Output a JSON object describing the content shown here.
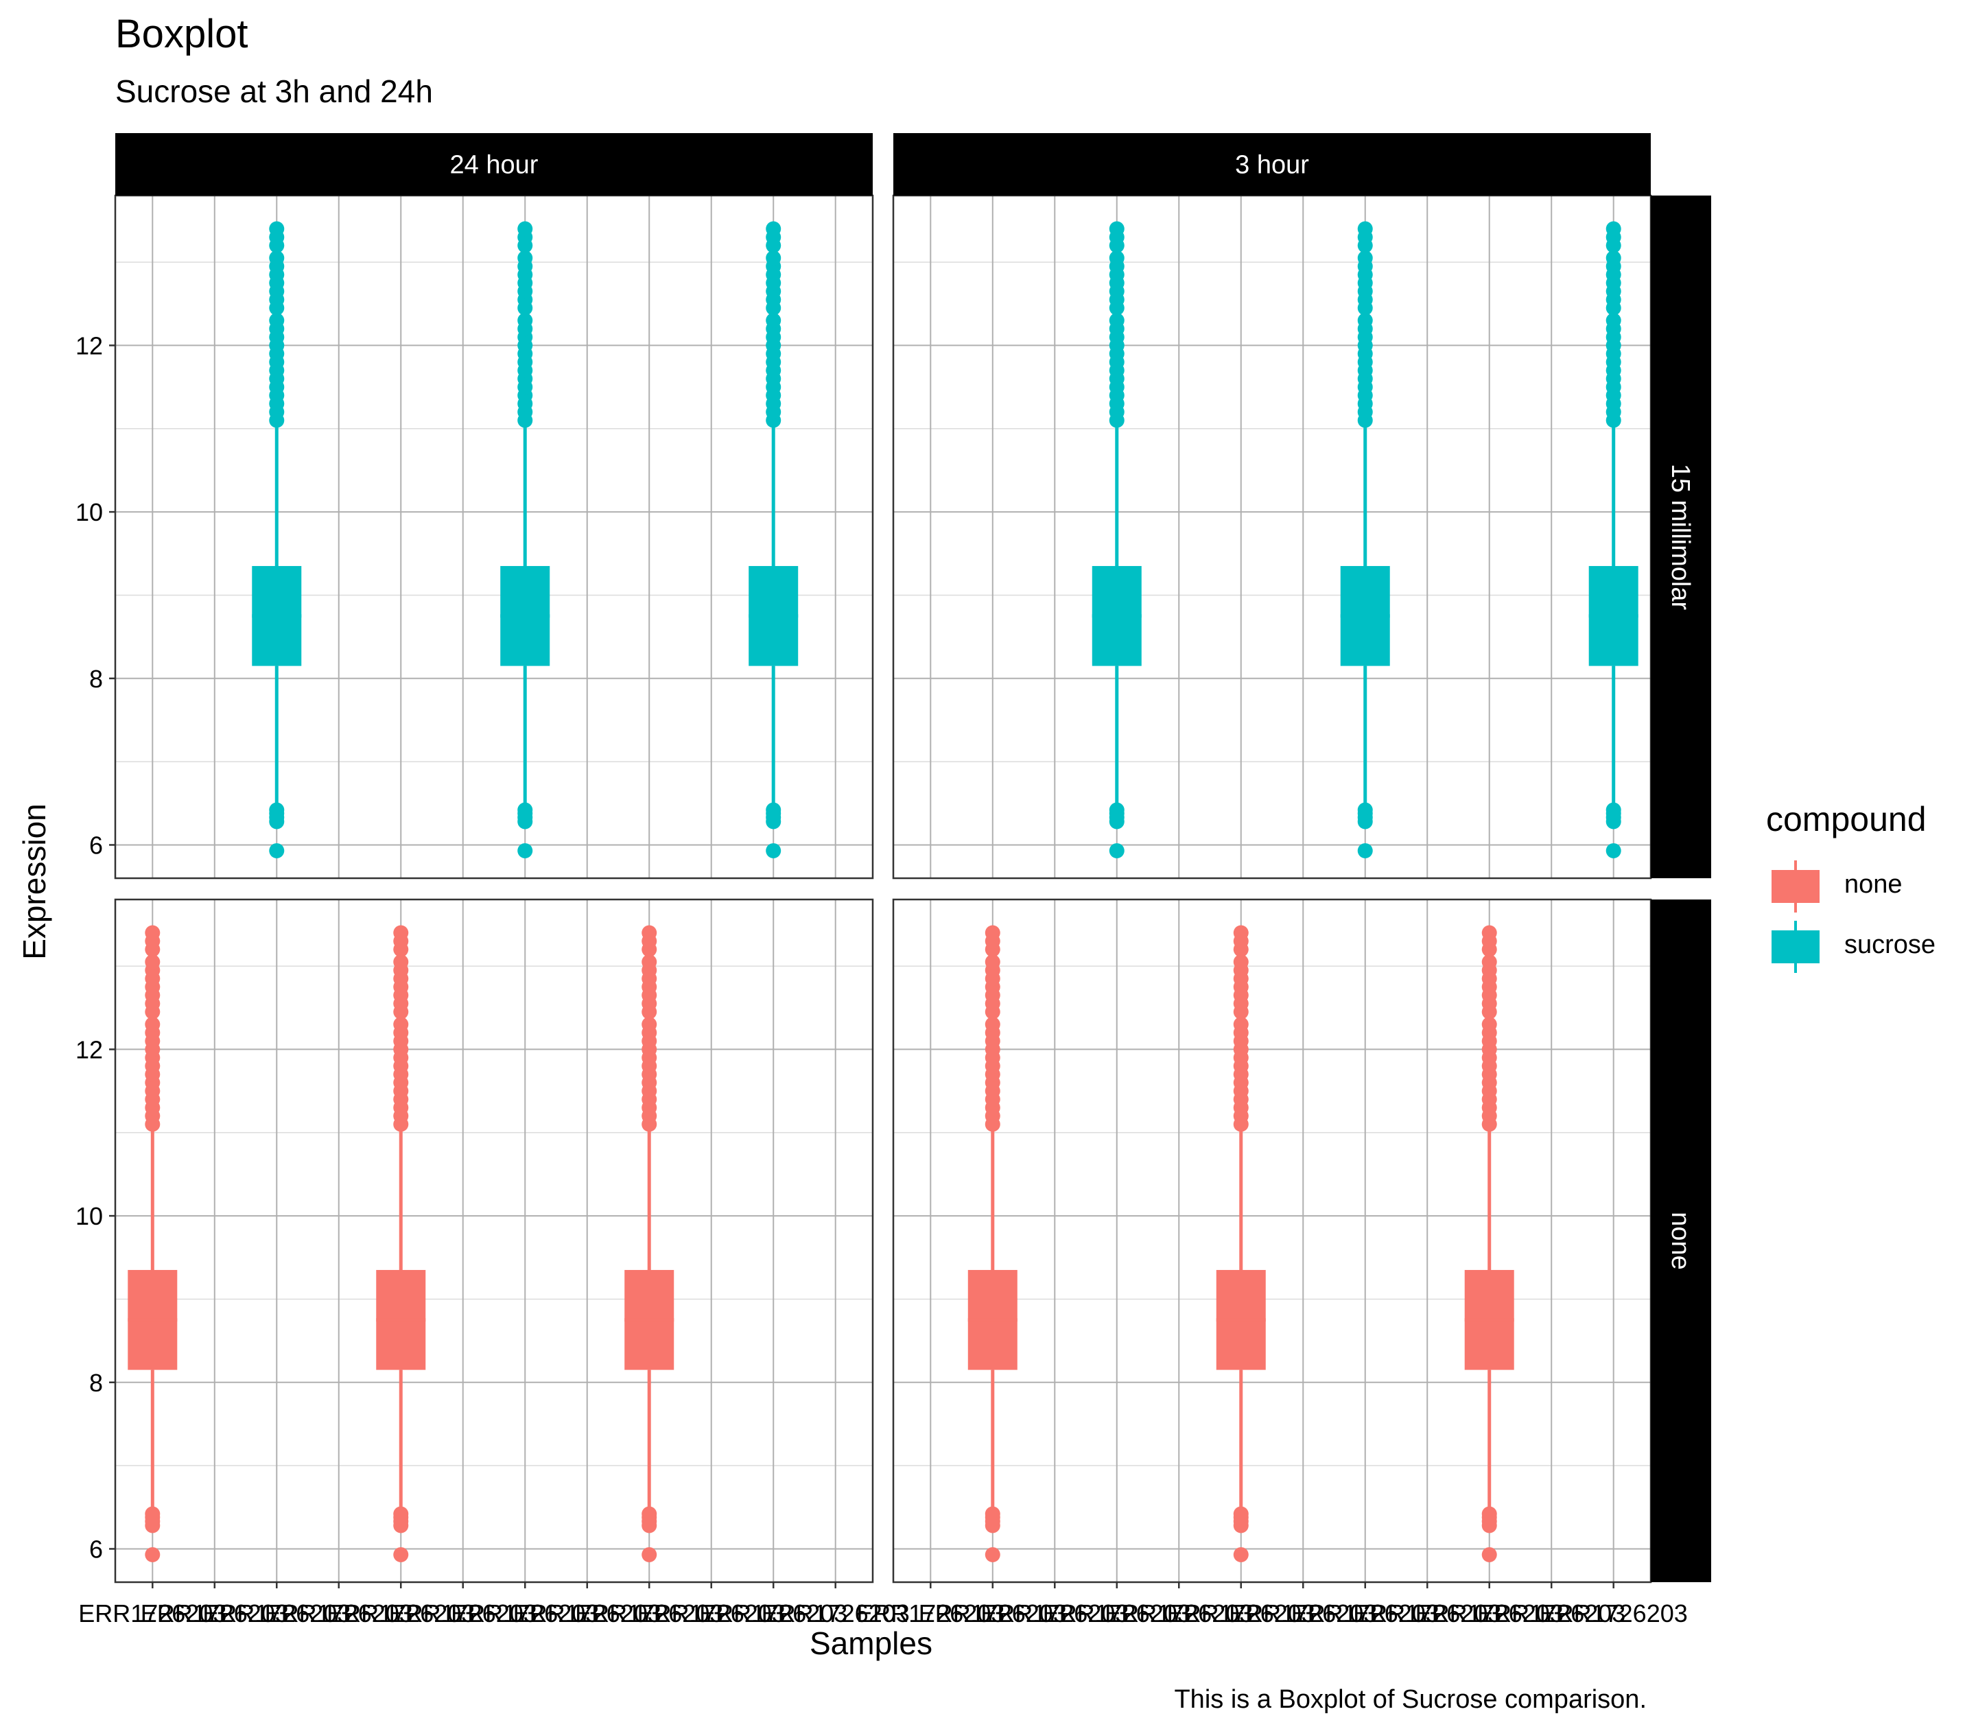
{
  "chart_data": {
    "type": "boxplot",
    "title": "Boxplot",
    "subtitle": "Sucrose at 3h and 24h",
    "caption": "This is a Boxplot of Sucrose comparison.",
    "xlabel": "Samples",
    "ylabel": "Expression",
    "ylim": [
      5.6,
      13.8
    ],
    "y_ticks": [
      6,
      8,
      10,
      12
    ],
    "grid": true,
    "legend": {
      "title": "compound",
      "placement": "right",
      "entries": [
        {
          "label": "none",
          "color": "#F8766D"
        },
        {
          "label": "sucrose",
          "color": "#00BFC4"
        }
      ]
    },
    "facet_columns": [
      "24 hour",
      "3 hour"
    ],
    "facet_rows": [
      "15 millimolar",
      "none"
    ],
    "sample_tick_labels": [
      "ERR1726203",
      "ERR1726203",
      "ERR1726203",
      "ERR1726203",
      "ERR1726203",
      "ERR1726203",
      "ERR1726203",
      "ERR1726203",
      "ERR1726203",
      "ERR1726203",
      "ERR1726203",
      "ERR1726203"
    ],
    "box_stats": {
      "whisker_low": 6.45,
      "q1": 8.15,
      "median": 8.75,
      "q3": 9.35,
      "whisker_high": 11.05
    },
    "outliers_low": [
      6.42,
      6.38,
      6.33,
      6.28,
      5.93
    ],
    "outliers_high": [
      11.1,
      11.2,
      11.3,
      11.4,
      11.5,
      11.6,
      11.7,
      11.8,
      11.9,
      12.0,
      12.1,
      12.2,
      12.3,
      12.45,
      12.55,
      12.65,
      12.75,
      12.85,
      12.95,
      13.05,
      13.2,
      13.3,
      13.4
    ],
    "panels": [
      {
        "column": "24 hour",
        "row": "15 millimolar",
        "compound": "sucrose",
        "sample_positions": [
          3,
          7,
          11
        ]
      },
      {
        "column": "3 hour",
        "row": "15 millimolar",
        "compound": "sucrose",
        "sample_positions": [
          4,
          8,
          12
        ]
      },
      {
        "column": "24 hour",
        "row": "none",
        "compound": "none",
        "sample_positions": [
          1,
          5,
          9
        ]
      },
      {
        "column": "3 hour",
        "row": "none",
        "compound": "none",
        "sample_positions": [
          2,
          6,
          10
        ]
      }
    ]
  }
}
